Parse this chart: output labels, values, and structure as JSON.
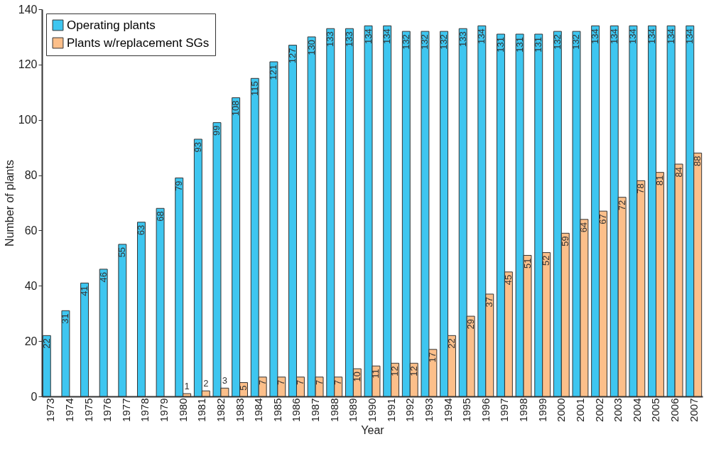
{
  "chart_data": {
    "type": "bar",
    "xlabel": "Year",
    "ylabel": "Number of plants",
    "categories": [
      "1973",
      "1974",
      "1975",
      "1976",
      "1977",
      "1978",
      "1979",
      "1980",
      "1981",
      "1982",
      "1983",
      "1984",
      "1985",
      "1986",
      "1987",
      "1988",
      "1989",
      "1990",
      "1991",
      "1992",
      "1993",
      "1994",
      "1995",
      "1996",
      "1997",
      "1998",
      "1999",
      "2000",
      "2001",
      "2002",
      "2003",
      "2004",
      "2005",
      "2006",
      "2007"
    ],
    "series": [
      {
        "name": "Operating plants",
        "color": "#3ec6f0",
        "values": [
          22,
          31,
          41,
          46,
          55,
          63,
          68,
          79,
          93,
          99,
          108,
          115,
          121,
          127,
          130,
          133,
          133,
          134,
          134,
          132,
          132,
          132,
          133,
          134,
          131,
          131,
          131,
          132,
          132,
          134,
          134,
          134,
          134,
          134,
          134
        ]
      },
      {
        "name": "Plants w/replacement SGs",
        "color": "#fcbf8a",
        "values": [
          null,
          null,
          null,
          null,
          null,
          null,
          null,
          1,
          2,
          3,
          5,
          7,
          7,
          7,
          7,
          7,
          10,
          11,
          12,
          12,
          17,
          22,
          29,
          37,
          45,
          51,
          52,
          59,
          64,
          67,
          72,
          78,
          81,
          84,
          88
        ]
      }
    ],
    "ylim": [
      0,
      140
    ],
    "yticks": [
      0,
      20,
      40,
      60,
      80,
      100,
      120,
      140
    ],
    "grid": false,
    "legend": "top left",
    "data_labels": true
  }
}
